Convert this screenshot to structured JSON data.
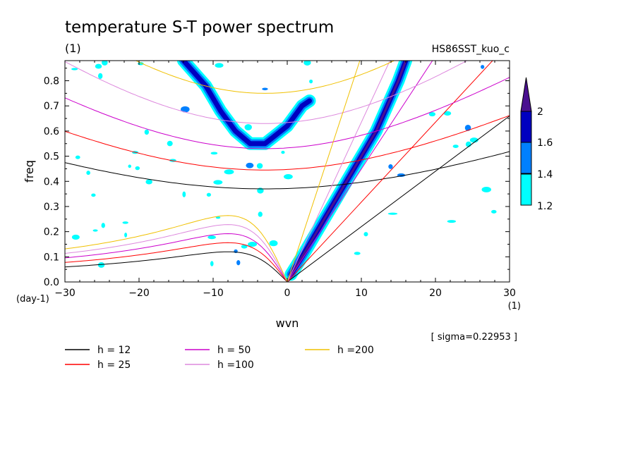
{
  "chart_data": {
    "type": "heatmap",
    "title": "temperature S-T power spectrum",
    "subtitle_left": "(1)",
    "subtitle_right": "HS86SST_kuo_c",
    "xlabel": "wvn",
    "ylabel": "freq",
    "x_unit": "(1)",
    "y_unit": "(day-1)",
    "xlim": [
      -30,
      30
    ],
    "ylim": [
      0,
      0.88
    ],
    "x_ticks": [
      -30,
      -20,
      -10,
      0,
      10,
      20,
      30
    ],
    "x_tick_labels": [
      "−30",
      "−20",
      "−10",
      "0",
      "10",
      "20",
      "30"
    ],
    "y_ticks": [
      0.0,
      0.1,
      0.2,
      0.3,
      0.4,
      0.5,
      0.6,
      0.7,
      0.8
    ],
    "y_tick_labels": [
      "0.0",
      "0.1",
      "0.2",
      "0.3",
      "0.4",
      "0.5",
      "0.6",
      "0.7",
      "0.8"
    ],
    "sigma_note": "[ sigma=0.22953 ]",
    "colorbar": {
      "levels": [
        1.2,
        1.4,
        1.6,
        2
      ],
      "level_labels": [
        "1.2",
        "1.4",
        "1.6",
        "2"
      ],
      "colors": [
        "#00ffff",
        "#0080ff",
        "#0000c0",
        "#4a1090"
      ]
    },
    "dispersion_curves": [
      {
        "label": "h = 12",
        "h": 12,
        "color": "#000000",
        "ig_freq_at_k0": 0.37
      },
      {
        "label": "h = 25",
        "h": 25,
        "color": "#ff0000",
        "ig_freq_at_k0": 0.445
      },
      {
        "label": "h = 50",
        "h": 50,
        "color": "#cc00cc",
        "ig_freq_at_k0": 0.53
      },
      {
        "label": "h =100",
        "h": 100,
        "color": "#dd88dd",
        "ig_freq_at_k0": 0.63
      },
      {
        "label": "h =200",
        "h": 200,
        "color": "#f0c000",
        "ig_freq_at_k0": 0.75
      }
    ],
    "spectral_peaks": [
      {
        "name": "kelvin-ridge",
        "points": [
          [
            0.5,
            0.03
          ],
          [
            2,
            0.1
          ],
          [
            4,
            0.2
          ],
          [
            6,
            0.3
          ],
          [
            8,
            0.4
          ],
          [
            10,
            0.5
          ],
          [
            12,
            0.6
          ],
          [
            13.5,
            0.7
          ],
          [
            15,
            0.8
          ],
          [
            16,
            0.88
          ]
        ],
        "level": 2
      },
      {
        "name": "ig-arc",
        "points": [
          [
            -14,
            0.88
          ],
          [
            -11,
            0.78
          ],
          [
            -9,
            0.68
          ],
          [
            -7,
            0.6
          ],
          [
            -5,
            0.55
          ],
          [
            -3,
            0.55
          ],
          [
            0,
            0.62
          ],
          [
            2,
            0.7
          ],
          [
            3,
            0.72
          ]
        ],
        "level": 1.6
      }
    ]
  }
}
